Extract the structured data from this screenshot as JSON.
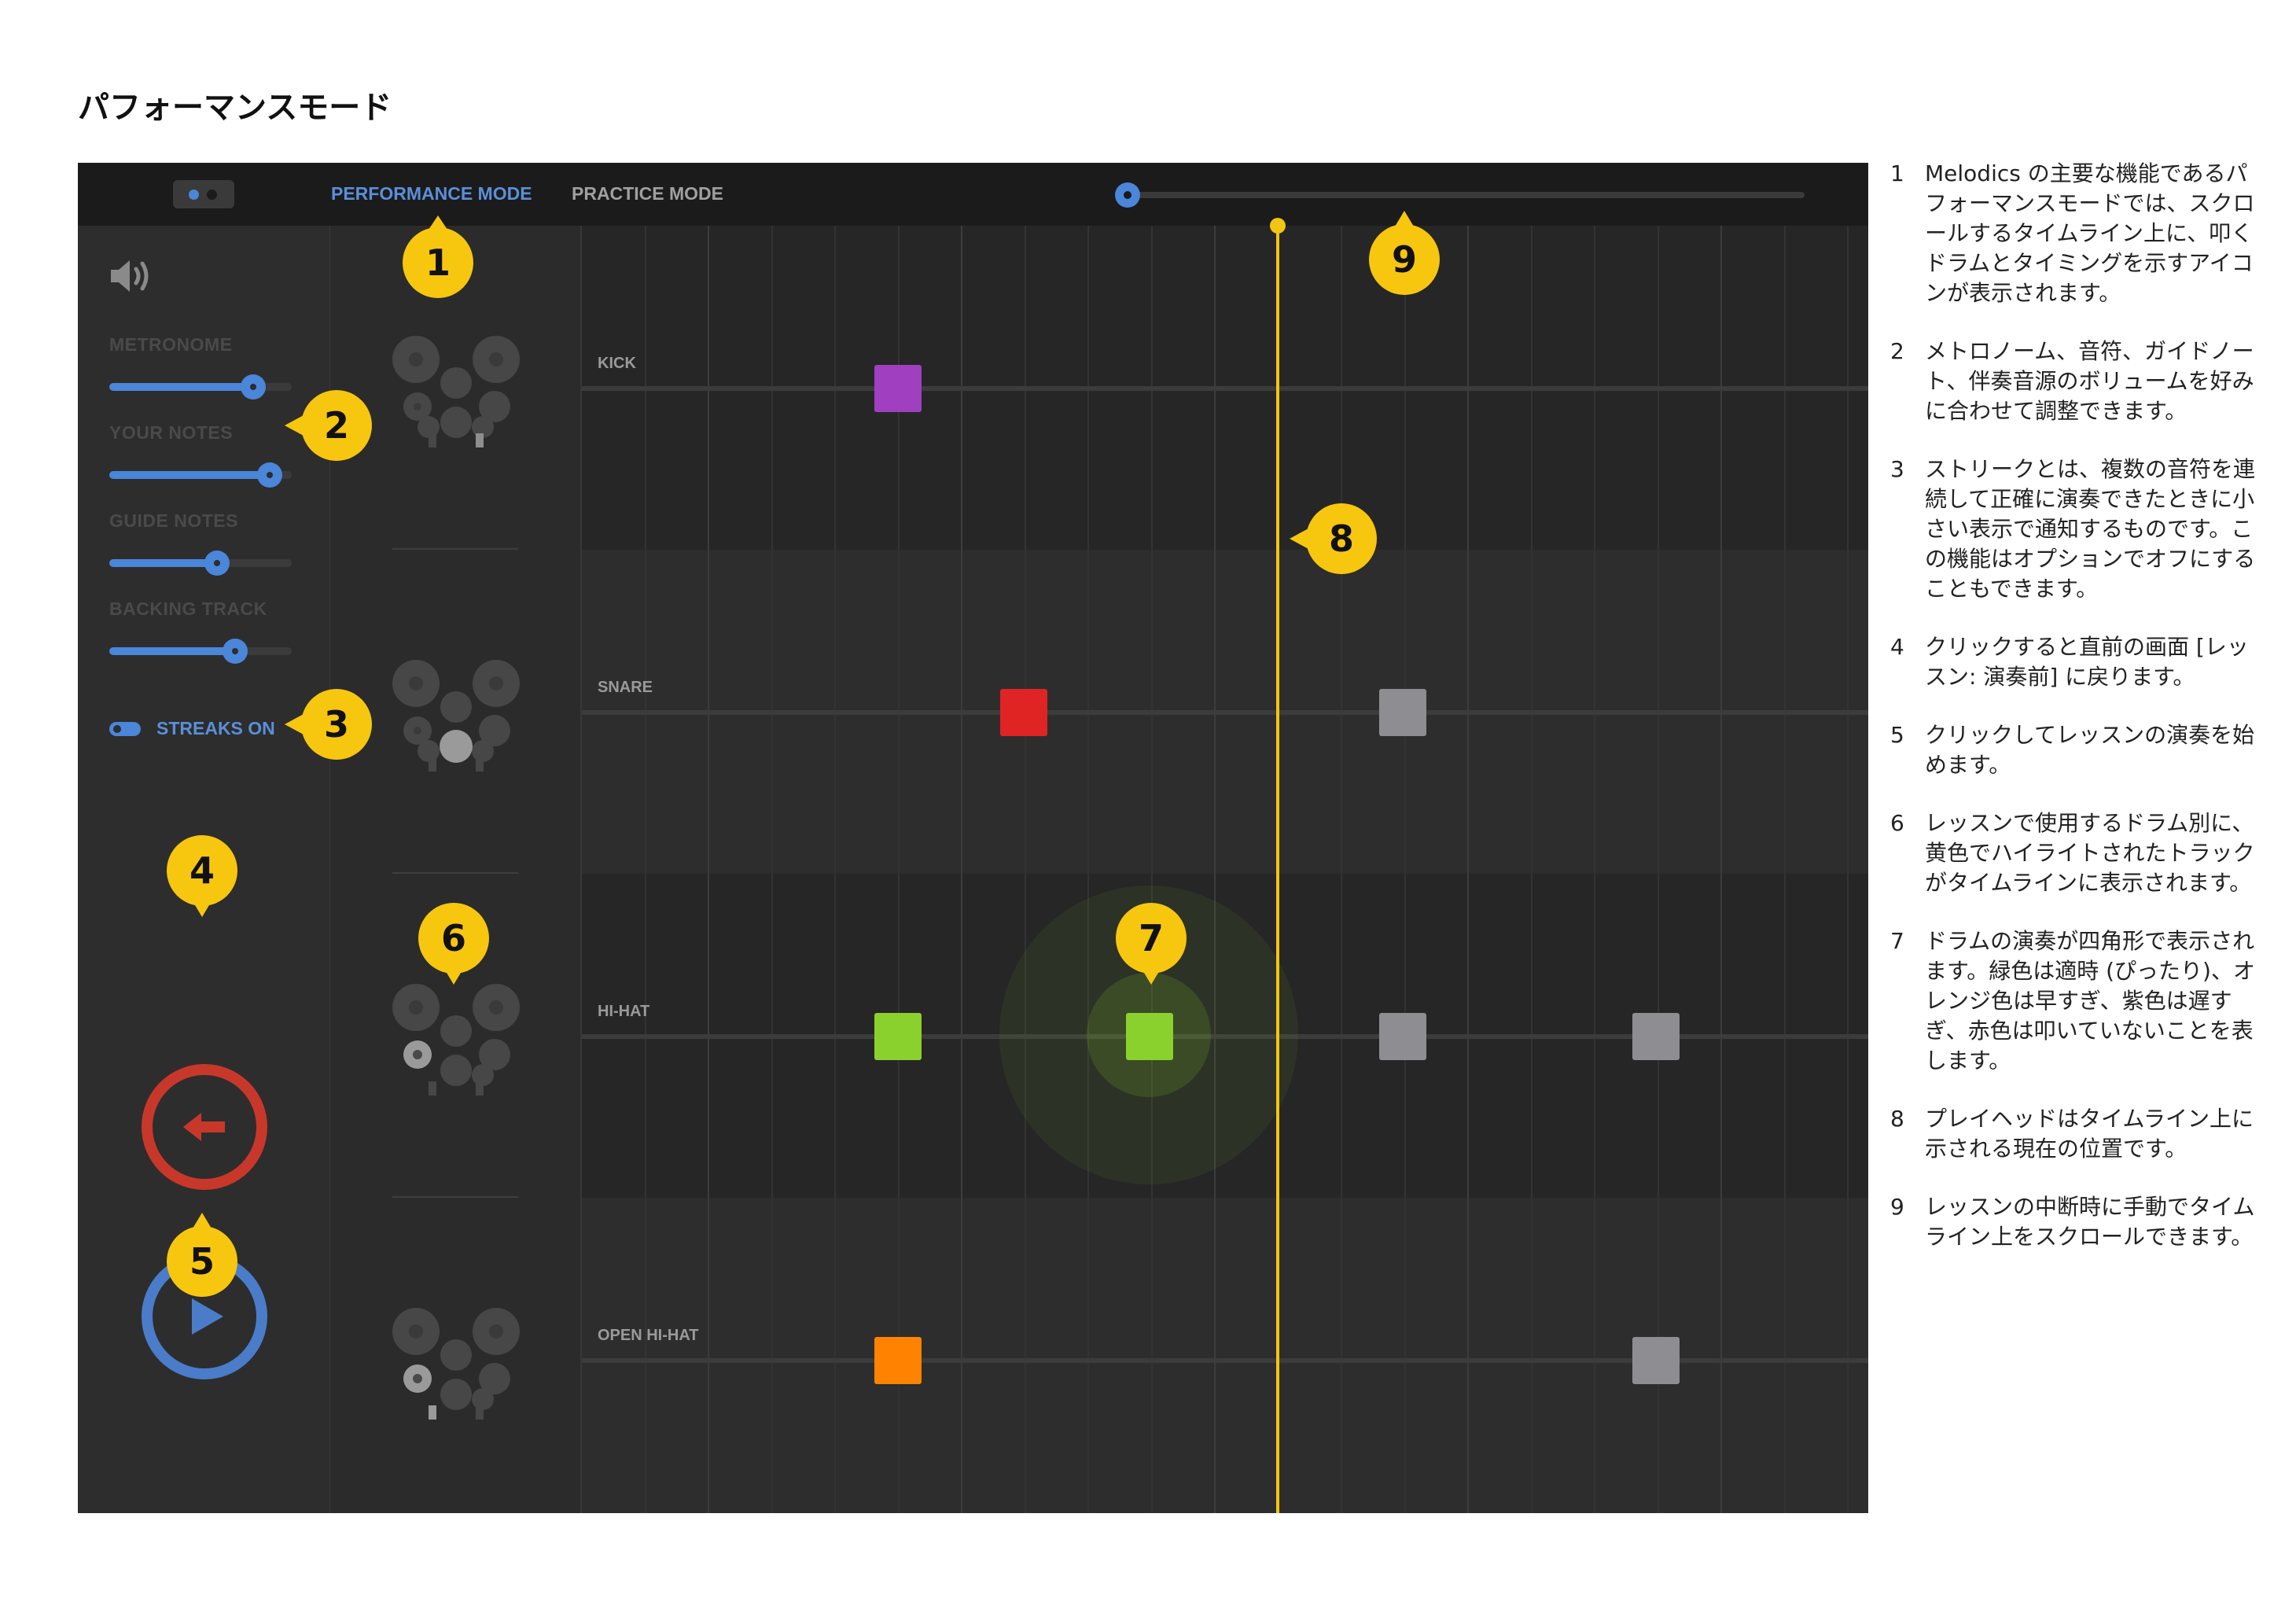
{
  "page_title": "パフォーマンスモード",
  "topbar": {
    "tabs": [
      {
        "label": "PERFORMANCE MODE",
        "active": true
      },
      {
        "label": "PRACTICE MODE",
        "active": false
      }
    ]
  },
  "left_panel": {
    "volumes": [
      {
        "label": "METRONOME",
        "value": 0.79
      },
      {
        "label": "YOUR NOTES",
        "value": 0.88
      },
      {
        "label": "GUIDE NOTES",
        "value": 0.59
      },
      {
        "label": "BACKING TRACK",
        "value": 0.69
      }
    ],
    "streaks_label": "STREAKS ON"
  },
  "tracks": [
    {
      "label": "KICK"
    },
    {
      "label": "SNARE"
    },
    {
      "label": "HI-HAT"
    },
    {
      "label": "OPEN HI-HAT"
    }
  ],
  "callouts": [
    "1",
    "2",
    "3",
    "4",
    "5",
    "6",
    "7",
    "8",
    "9"
  ],
  "colors": {
    "accent_blue": "#4a86d9",
    "playhead_yellow": "#f3c513",
    "callout_yellow": "#f7c60f",
    "note_late_purple": "#a040c0",
    "note_missed_red": "#e02424",
    "note_ontime_green": "#8ad12d",
    "note_early_orange": "#ff8200",
    "note_upcoming_gray": "#8e8e92",
    "back_button_red": "#c8382a"
  },
  "icons": [
    "toggle-icon",
    "speaker-icon",
    "back-arrow-icon",
    "play-icon",
    "drum-kit-icon"
  ],
  "explanations": [
    {
      "num": "1",
      "text": "Melodics の主要な機能であるパフォーマンスモードでは、スクロールするタイムライン上に、叩くドラムとタイミングを示すアイコンが表示されます。"
    },
    {
      "num": "2",
      "text": "メトロノーム、音符、ガイドノート、伴奏音源のボリュームを好みに合わせて調整できます。"
    },
    {
      "num": "3",
      "text": "ストリークとは、複数の音符を連続して正確に演奏できたときに小さい表示で通知するものです。この機能はオプションでオフにすることもできます。"
    },
    {
      "num": "4",
      "text": "クリックすると直前の画面 [レッスン: 演奏前] に戻ります。"
    },
    {
      "num": "5",
      "text": "クリックしてレッスンの演奏を始めます。"
    },
    {
      "num": "6",
      "text": "レッスンで使用するドラム別に、黄色でハイライトされたトラックがタイムラインに表示されます。"
    },
    {
      "num": "7",
      "text": "ドラムの演奏が四角形で表示されます。緑色は適時 (ぴったり)、オレンジ色は早すぎ、紫色は遅すぎ、赤色は叩いていないことを表します。"
    },
    {
      "num": "8",
      "text": "プレイヘッドはタイムライン上に示される現在の位置です。"
    },
    {
      "num": "9",
      "text": "レッスンの中断時に手動でタイムライン上をスクロールできます。"
    }
  ]
}
